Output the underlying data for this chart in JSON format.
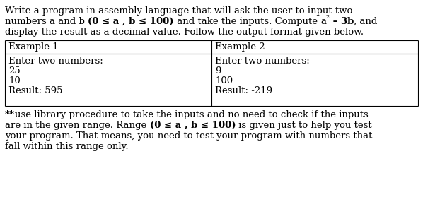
{
  "bg_color": "#ffffff",
  "text_color": "#000000",
  "example1_header": "Example 1",
  "example2_header": "Example 2",
  "example1_lines": [
    "Enter two numbers:",
    "25",
    "10",
    "Result: 595"
  ],
  "example2_lines": [
    "Enter two numbers:",
    "9",
    "100",
    "Result: -219"
  ],
  "font_size_body": 9.5,
  "font_size_table": 9.5
}
